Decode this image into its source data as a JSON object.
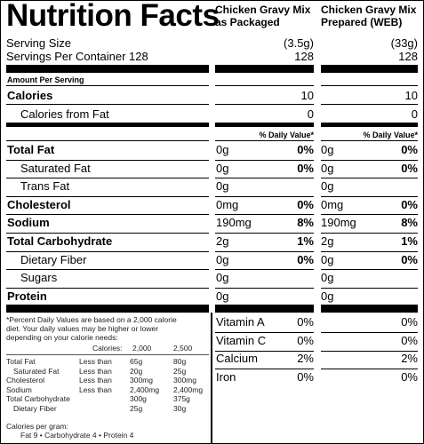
{
  "title": "Nutrition Facts",
  "columns": [
    {
      "name": "Chicken Gravy Mix as Packaged",
      "serving_size": "(3.5g)",
      "servings": "128",
      "calories": "10",
      "calories_from_fat": "0"
    },
    {
      "name": "Chicken Gravy Mix Prepared (WEB)",
      "serving_size": "(33g)",
      "servings": "128",
      "calories": "10",
      "calories_from_fat": "0"
    }
  ],
  "serving_size_label": "Serving Size",
  "servings_label": "Servings Per Container 128",
  "amount_per_serving": "Amount Per Serving",
  "calories_label": "Calories",
  "calories_fat_label": "Calories from Fat",
  "dv_header": "% Daily Value*",
  "nutrients": [
    {
      "name": "Total Fat",
      "bold": true,
      "c1": {
        "amt": "0g",
        "dv": "0%"
      },
      "c2": {
        "amt": "0g",
        "dv": "0%"
      }
    },
    {
      "name": "Saturated Fat",
      "bold": false,
      "c1": {
        "amt": "0g",
        "dv": "0%"
      },
      "c2": {
        "amt": "0g",
        "dv": "0%"
      }
    },
    {
      "name": "Trans Fat",
      "bold": false,
      "c1": {
        "amt": "0g",
        "dv": ""
      },
      "c2": {
        "amt": "0g",
        "dv": ""
      }
    },
    {
      "name": "Cholesterol",
      "bold": true,
      "c1": {
        "amt": "0mg",
        "dv": "0%"
      },
      "c2": {
        "amt": "0mg",
        "dv": "0%"
      }
    },
    {
      "name": "Sodium",
      "bold": true,
      "c1": {
        "amt": "190mg",
        "dv": "8%"
      },
      "c2": {
        "amt": "190mg",
        "dv": "8%"
      }
    },
    {
      "name": "Total Carbohydrate",
      "bold": true,
      "c1": {
        "amt": "2g",
        "dv": "1%"
      },
      "c2": {
        "amt": "2g",
        "dv": "1%"
      }
    },
    {
      "name": "Dietary Fiber",
      "bold": false,
      "c1": {
        "amt": "0g",
        "dv": "0%"
      },
      "c2": {
        "amt": "0g",
        "dv": "0%"
      }
    },
    {
      "name": "Sugars",
      "bold": false,
      "c1": {
        "amt": "0g",
        "dv": ""
      },
      "c2": {
        "amt": "0g",
        "dv": ""
      }
    },
    {
      "name": "Protein",
      "bold": true,
      "c1": {
        "amt": "0g",
        "dv": ""
      },
      "c2": {
        "amt": "0g",
        "dv": ""
      }
    }
  ],
  "vitamins": [
    {
      "name": "Vitamin A",
      "c1": "0%",
      "c2": "0%"
    },
    {
      "name": "Vitamin C",
      "c1": "0%",
      "c2": "0%"
    },
    {
      "name": "Calcium",
      "c1": "2%",
      "c2": "2%"
    },
    {
      "name": "Iron",
      "c1": "0%",
      "c2": "0%"
    }
  ],
  "footnote": {
    "line1": "*Percent Daily Values are based on a 2,000 calorie",
    "line2": "diet. Your daily values may be higher or lower",
    "line3": "depending on your calorie needs:",
    "calories_label": "Calories:",
    "cal_2000": "2,000",
    "cal_2500": "2,500",
    "rows": [
      {
        "name": "Total Fat",
        "cmp": "Less than",
        "v1": "65g",
        "v2": "80g"
      },
      {
        "name": "Saturated Fat",
        "cmp": "Less than",
        "v1": "20g",
        "v2": "25g"
      },
      {
        "name": "Cholesterol",
        "cmp": "Less than",
        "v1": "300mg",
        "v2": "300mg"
      },
      {
        "name": "Sodium",
        "cmp": "Less than",
        "v1": "2,400mg",
        "v2": "2,400mg"
      },
      {
        "name": "Total Carbohydrate",
        "cmp": "",
        "v1": "300g",
        "v2": "375g"
      },
      {
        "name": "Dietary Fiber",
        "cmp": "",
        "v1": "25g",
        "v2": "30g"
      }
    ],
    "cal_per_gram": "Calories per gram:",
    "per_gram_line": "Fat 9  •  Carbohydrate 4  •  Protein 4"
  }
}
